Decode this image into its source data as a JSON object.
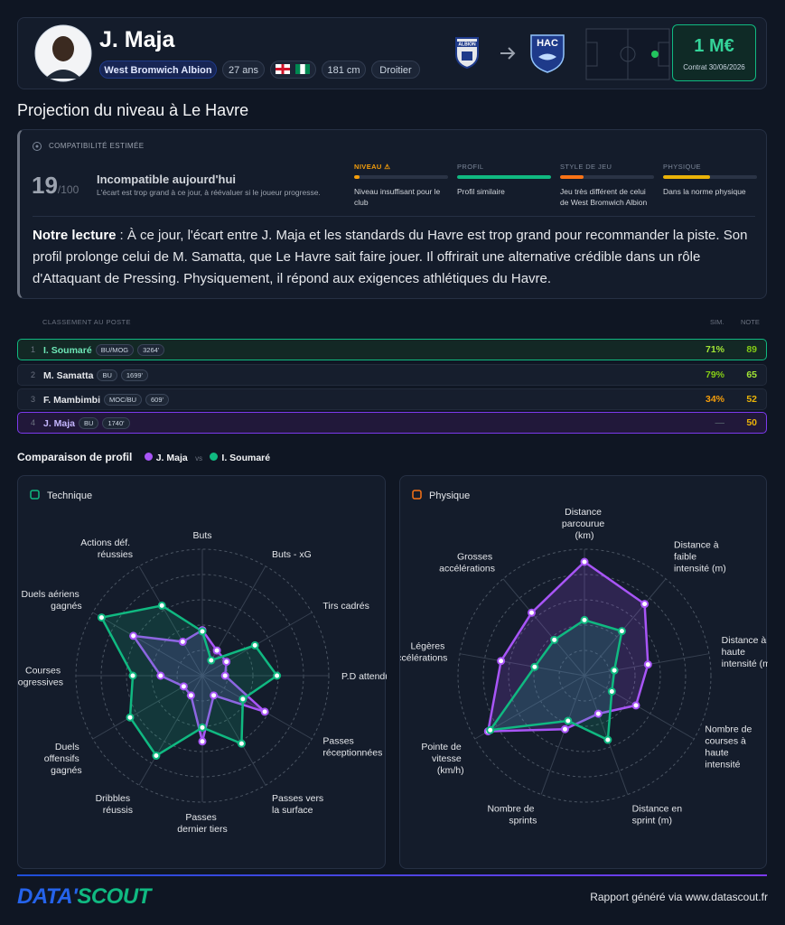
{
  "header": {
    "name": "J. Maja",
    "club": "West Bromwich Albion",
    "age": "27 ans",
    "height": "181 cm",
    "foot": "Droitier",
    "from_logo": "ALBION",
    "to_logo": "HAC",
    "value": "1 M€",
    "contract": "Contrat 30/06/2026"
  },
  "section_title": "Projection du niveau à Le Havre",
  "compatibility": {
    "label": "COMPATIBILITÉ ESTIMÉE",
    "score": 19,
    "score_max": "/100",
    "verdict": "Incompatible aujourd'hui",
    "verdict_note": "L'écart est trop grand à ce jour, à réévaluer si le joueur progresse.",
    "criteria": [
      {
        "label": "NIVEAU ⚠",
        "fill": 6,
        "color": "#f59e0b",
        "text": "Niveau insuffisant pour le club"
      },
      {
        "label": "PROFIL",
        "fill": 100,
        "color": "#10b981",
        "text": "Profil similaire"
      },
      {
        "label": "STYLE DE JEU",
        "fill": 25,
        "color": "#f97316",
        "text": "Jeu très différent de celui de West Bromwich Albion"
      },
      {
        "label": "PHYSIQUE",
        "fill": 50,
        "color": "#eab308",
        "text": "Dans la norme physique"
      }
    ],
    "reading_lead": "Notre lecture",
    "reading": ": À ce jour, l'écart entre J. Maja et les standards du Havre est trop grand pour recommander la piste. Son profil prolonge celui de M. Samatta, que Le Havre sait faire jouer. Il offrirait une alternative crédible dans un rôle d'Attaquant de Pressing. Physiquement, il répond aux exigences athlétiques du Havre."
  },
  "ranking": {
    "title": "CLASSEMENT AU POSTE",
    "col_sim": "SIM.",
    "col_note": "NOTE",
    "rows": [
      {
        "rank": 1,
        "name": "I. Soumaré",
        "tags": [
          "BU/MOG"
        ],
        "minutes": "3264'",
        "sim": "71%",
        "sim_color": "#a3e635",
        "note": 89,
        "note_color": "#84cc16"
      },
      {
        "rank": 2,
        "name": "M. Samatta",
        "tags": [
          "BU"
        ],
        "minutes": "1699'",
        "sim": "79%",
        "sim_color": "#84cc16",
        "note": 65,
        "note_color": "#a3e635"
      },
      {
        "rank": 3,
        "name": "F. Mambimbi",
        "tags": [
          "MOC/BU"
        ],
        "minutes": "609'",
        "sim": "34%",
        "sim_color": "#f59e0b",
        "note": 52,
        "note_color": "#eab308"
      },
      {
        "rank": 4,
        "name": "J. Maja",
        "tags": [
          "BU"
        ],
        "minutes": "1740'",
        "sim": "—",
        "sim_color": "#4b5563",
        "note": 50,
        "note_color": "#eab308"
      }
    ]
  },
  "comparison": {
    "title": "Comparaison de profil",
    "vs": "vs"
  },
  "chart_data": [
    {
      "type": "radar",
      "title": "Technique",
      "categories": [
        "Buts",
        "Buts - xG",
        "Tirs cadrés",
        "P.D attendues",
        "Passes réceptionnées",
        "Passes vers la surface",
        "Passes dernier tiers",
        "Dribbles réussis",
        "Duels offensifs gagnés",
        "Courses progressives",
        "Duels aériens gagnés",
        "Actions déf. réussies"
      ],
      "series": [
        {
          "name": "J. Maja",
          "color": "#a855f7",
          "values": [
            36,
            23,
            22,
            18,
            57,
            18,
            52,
            18,
            17,
            33,
            63,
            31
          ]
        },
        {
          "name": "I. Soumaré",
          "color": "#10b981",
          "values": [
            35,
            14,
            48,
            59,
            37,
            62,
            41,
            73,
            66,
            55,
            92,
            64
          ]
        }
      ],
      "rlim": [
        0,
        100
      ],
      "rticks": [
        20,
        40,
        60,
        80,
        100
      ]
    },
    {
      "type": "radar",
      "title": "Physique",
      "categories": [
        "Distance parcourue (km)",
        "Distance à faible intensité (m)",
        "Distance à haute intensité (m)",
        "Nombre de courses à haute intensité",
        "Distance en sprint (m)",
        "Nombre de sprints",
        "Pointe de vitesse (km/h)",
        "Légères accélérations",
        "Grosses accélérations"
      ],
      "series": [
        {
          "name": "J. Maja",
          "color": "#a855f7",
          "values": [
            90,
            74,
            51,
            47,
            32,
            45,
            88,
            67,
            65
          ]
        },
        {
          "name": "I. Soumaré",
          "color": "#10b981",
          "values": [
            44,
            46,
            24,
            25,
            54,
            38,
            86,
            40,
            37
          ]
        }
      ],
      "rlim": [
        0,
        100
      ],
      "rticks": [
        20,
        40,
        60,
        80,
        100
      ]
    }
  ],
  "footer": {
    "logo_a": "DATA'",
    "logo_b": "SCOUT",
    "credit": "Rapport généré via www.datascout.fr"
  }
}
